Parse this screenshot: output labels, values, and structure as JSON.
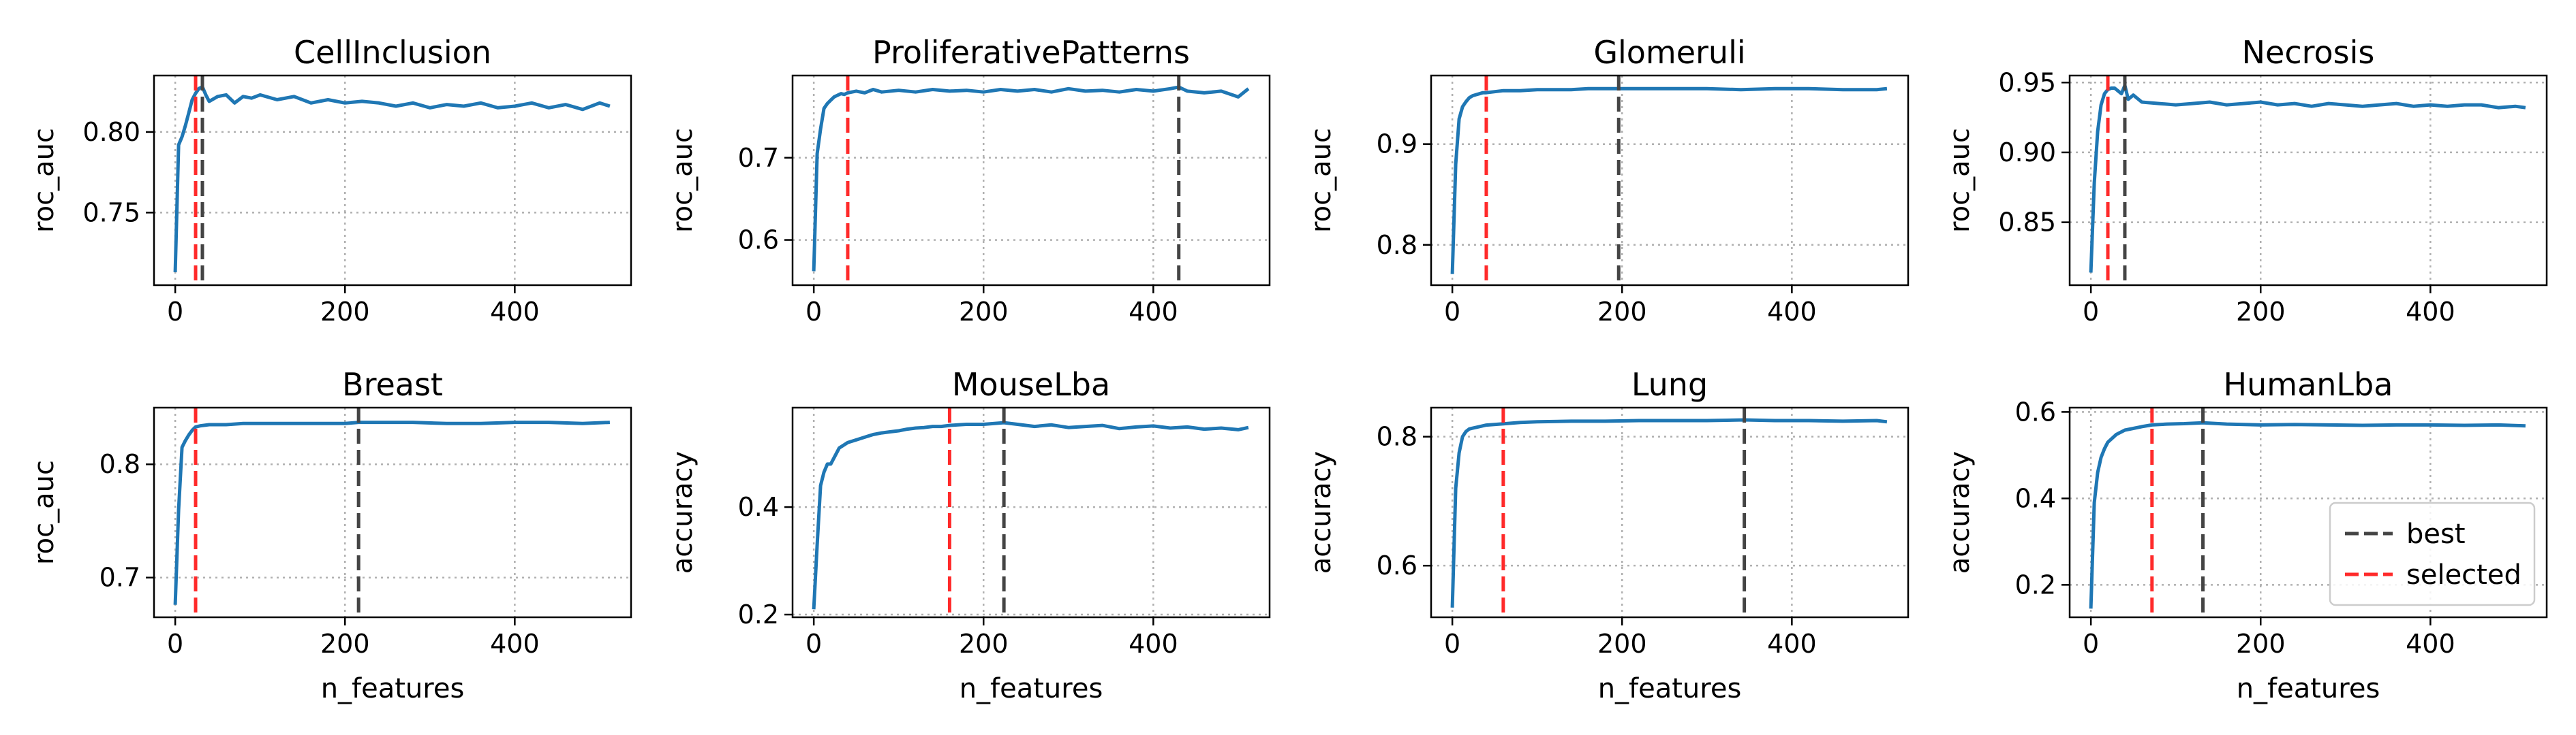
{
  "figure": {
    "colors": {
      "line": "#1f77b4",
      "best": "#444444",
      "selected": "#ff2a2a",
      "grid": "#b0b0b0"
    },
    "legend": {
      "placement": "lower-right",
      "panel": "HumanLba",
      "items": [
        {
          "label": "best",
          "color": "#444444"
        },
        {
          "label": "selected",
          "color": "#ff2a2a"
        }
      ]
    }
  },
  "chart_data": [
    {
      "type": "line",
      "title": "CellInclusion",
      "xlabel": "",
      "ylabel": "roc_auc",
      "xlim": [
        -25,
        537
      ],
      "ylim": [
        0.705,
        0.835
      ],
      "xticks": [
        0,
        200,
        400
      ],
      "yticks": [
        0.75,
        0.8
      ],
      "ytick_labels": [
        "0.75",
        "0.80"
      ],
      "best_x": 32,
      "selected_x": 24,
      "x": [
        0,
        4,
        8,
        12,
        16,
        20,
        24,
        28,
        32,
        36,
        40,
        50,
        60,
        70,
        80,
        90,
        100,
        120,
        140,
        160,
        180,
        200,
        220,
        240,
        260,
        280,
        300,
        320,
        340,
        360,
        380,
        400,
        420,
        440,
        460,
        480,
        500,
        512
      ],
      "y": [
        0.713,
        0.792,
        0.797,
        0.804,
        0.812,
        0.82,
        0.824,
        0.827,
        0.828,
        0.823,
        0.819,
        0.822,
        0.823,
        0.818,
        0.822,
        0.821,
        0.823,
        0.82,
        0.822,
        0.818,
        0.82,
        0.818,
        0.819,
        0.818,
        0.816,
        0.818,
        0.815,
        0.817,
        0.816,
        0.818,
        0.815,
        0.816,
        0.818,
        0.815,
        0.817,
        0.814,
        0.818,
        0.816
      ]
    },
    {
      "type": "line",
      "title": "ProliferativePatterns",
      "xlabel": "",
      "ylabel": "roc_auc",
      "xlim": [
        -25,
        537
      ],
      "ylim": [
        0.545,
        0.8
      ],
      "xticks": [
        0,
        200,
        400
      ],
      "yticks": [
        0.6,
        0.7
      ],
      "ytick_labels": [
        "0.6",
        "0.7"
      ],
      "best_x": 430,
      "selected_x": 40,
      "x": [
        0,
        4,
        8,
        12,
        16,
        20,
        24,
        28,
        32,
        36,
        40,
        50,
        60,
        70,
        80,
        100,
        120,
        140,
        160,
        180,
        200,
        220,
        240,
        260,
        280,
        300,
        320,
        340,
        360,
        380,
        400,
        420,
        430,
        440,
        460,
        480,
        500,
        512
      ],
      "y": [
        0.562,
        0.705,
        0.735,
        0.76,
        0.766,
        0.77,
        0.774,
        0.776,
        0.778,
        0.777,
        0.779,
        0.781,
        0.779,
        0.783,
        0.78,
        0.782,
        0.78,
        0.783,
        0.781,
        0.782,
        0.78,
        0.783,
        0.781,
        0.783,
        0.78,
        0.784,
        0.781,
        0.782,
        0.78,
        0.783,
        0.781,
        0.784,
        0.786,
        0.781,
        0.779,
        0.781,
        0.774,
        0.784
      ]
    },
    {
      "type": "line",
      "title": "Glomeruli",
      "xlabel": "",
      "ylabel": "roc_auc",
      "xlim": [
        -25,
        537
      ],
      "ylim": [
        0.76,
        0.968
      ],
      "xticks": [
        0,
        200,
        400
      ],
      "yticks": [
        0.8,
        0.9
      ],
      "ytick_labels": [
        "0.8",
        "0.9"
      ],
      "best_x": 196,
      "selected_x": 40,
      "x": [
        0,
        4,
        8,
        12,
        16,
        20,
        24,
        28,
        32,
        36,
        40,
        50,
        60,
        80,
        100,
        120,
        140,
        160,
        180,
        196,
        220,
        240,
        260,
        280,
        300,
        340,
        380,
        420,
        460,
        500,
        512
      ],
      "y": [
        0.771,
        0.88,
        0.925,
        0.937,
        0.942,
        0.946,
        0.948,
        0.949,
        0.95,
        0.951,
        0.951,
        0.952,
        0.953,
        0.953,
        0.954,
        0.954,
        0.954,
        0.955,
        0.955,
        0.955,
        0.955,
        0.955,
        0.955,
        0.955,
        0.955,
        0.954,
        0.955,
        0.955,
        0.954,
        0.954,
        0.955
      ]
    },
    {
      "type": "line",
      "title": "Necrosis",
      "xlabel": "",
      "ylabel": "roc_auc",
      "xlim": [
        -25,
        537
      ],
      "ylim": [
        0.805,
        0.955
      ],
      "xticks": [
        0,
        200,
        400
      ],
      "yticks": [
        0.85,
        0.9,
        0.95
      ],
      "ytick_labels": [
        "0.85",
        "0.90",
        "0.95"
      ],
      "best_x": 40,
      "selected_x": 20,
      "x": [
        0,
        4,
        8,
        12,
        16,
        20,
        24,
        28,
        32,
        36,
        40,
        44,
        50,
        60,
        80,
        100,
        120,
        140,
        160,
        180,
        200,
        220,
        240,
        260,
        280,
        300,
        320,
        340,
        360,
        380,
        400,
        420,
        440,
        460,
        480,
        500,
        512
      ],
      "y": [
        0.814,
        0.878,
        0.915,
        0.934,
        0.942,
        0.945,
        0.946,
        0.946,
        0.944,
        0.942,
        0.948,
        0.938,
        0.941,
        0.936,
        0.935,
        0.934,
        0.935,
        0.936,
        0.934,
        0.935,
        0.936,
        0.934,
        0.935,
        0.933,
        0.935,
        0.934,
        0.933,
        0.934,
        0.935,
        0.933,
        0.934,
        0.933,
        0.934,
        0.934,
        0.932,
        0.933,
        0.932
      ]
    },
    {
      "type": "line",
      "title": "Breast",
      "xlabel": "n_features",
      "ylabel": "roc_auc",
      "xlim": [
        -25,
        537
      ],
      "ylim": [
        0.665,
        0.85
      ],
      "xticks": [
        0,
        200,
        400
      ],
      "yticks": [
        0.7,
        0.8
      ],
      "ytick_labels": [
        "0.7",
        "0.8"
      ],
      "best_x": 216,
      "selected_x": 24,
      "x": [
        0,
        4,
        8,
        12,
        16,
        20,
        24,
        30,
        40,
        60,
        80,
        100,
        120,
        140,
        160,
        180,
        200,
        216,
        240,
        280,
        320,
        360,
        400,
        440,
        480,
        512
      ],
      "y": [
        0.676,
        0.76,
        0.815,
        0.821,
        0.826,
        0.83,
        0.833,
        0.834,
        0.835,
        0.835,
        0.836,
        0.836,
        0.836,
        0.836,
        0.836,
        0.836,
        0.836,
        0.837,
        0.837,
        0.837,
        0.836,
        0.836,
        0.837,
        0.837,
        0.836,
        0.837
      ]
    },
    {
      "type": "line",
      "title": "MouseLba",
      "xlabel": "n_features",
      "ylabel": "accuracy",
      "xlim": [
        -25,
        537
      ],
      "ylim": [
        0.195,
        0.585
      ],
      "xticks": [
        0,
        200,
        400
      ],
      "yticks": [
        0.2,
        0.4
      ],
      "ytick_labels": [
        "0.2",
        "0.4"
      ],
      "best_x": 224,
      "selected_x": 160,
      "x": [
        0,
        4,
        8,
        12,
        16,
        20,
        30,
        40,
        50,
        60,
        70,
        80,
        90,
        100,
        110,
        120,
        130,
        140,
        150,
        160,
        170,
        180,
        200,
        224,
        240,
        260,
        280,
        300,
        320,
        340,
        360,
        380,
        400,
        420,
        440,
        460,
        480,
        500,
        512
      ],
      "y": [
        0.21,
        0.33,
        0.44,
        0.465,
        0.48,
        0.48,
        0.51,
        0.52,
        0.525,
        0.53,
        0.535,
        0.538,
        0.54,
        0.542,
        0.545,
        0.547,
        0.548,
        0.55,
        0.55,
        0.552,
        0.553,
        0.554,
        0.554,
        0.557,
        0.554,
        0.55,
        0.553,
        0.548,
        0.55,
        0.552,
        0.546,
        0.549,
        0.551,
        0.547,
        0.549,
        0.545,
        0.547,
        0.544,
        0.548
      ]
    },
    {
      "type": "line",
      "title": "Lung",
      "xlabel": "n_features",
      "ylabel": "accuracy",
      "xlim": [
        -25,
        537
      ],
      "ylim": [
        0.52,
        0.845
      ],
      "xticks": [
        0,
        200,
        400
      ],
      "yticks": [
        0.6,
        0.8
      ],
      "ytick_labels": [
        "0.6",
        "0.8"
      ],
      "best_x": 344,
      "selected_x": 60,
      "x": [
        0,
        4,
        8,
        12,
        16,
        20,
        30,
        40,
        60,
        80,
        100,
        140,
        180,
        220,
        260,
        300,
        344,
        380,
        420,
        460,
        500,
        512
      ],
      "y": [
        0.535,
        0.72,
        0.775,
        0.8,
        0.808,
        0.812,
        0.815,
        0.818,
        0.82,
        0.822,
        0.823,
        0.824,
        0.824,
        0.825,
        0.825,
        0.825,
        0.826,
        0.825,
        0.825,
        0.824,
        0.825,
        0.823
      ]
    },
    {
      "type": "line",
      "title": "HumanLba",
      "xlabel": "n_features",
      "ylabel": "accuracy",
      "xlim": [
        -25,
        537
      ],
      "ylim": [
        0.125,
        0.61
      ],
      "xticks": [
        0,
        200,
        400
      ],
      "yticks": [
        0.2,
        0.4,
        0.6
      ],
      "ytick_labels": [
        "0.2",
        "0.4",
        "0.6"
      ],
      "best_x": 132,
      "selected_x": 72,
      "legend": {
        "placement": "lower-right",
        "items": [
          "best",
          "selected"
        ]
      },
      "x": [
        0,
        4,
        8,
        12,
        16,
        20,
        30,
        40,
        50,
        60,
        72,
        90,
        110,
        132,
        160,
        200,
        240,
        280,
        320,
        360,
        400,
        440,
        480,
        512
      ],
      "y": [
        0.145,
        0.39,
        0.46,
        0.495,
        0.515,
        0.53,
        0.548,
        0.558,
        0.562,
        0.566,
        0.57,
        0.572,
        0.573,
        0.575,
        0.572,
        0.57,
        0.571,
        0.57,
        0.569,
        0.57,
        0.57,
        0.569,
        0.57,
        0.568
      ]
    }
  ]
}
